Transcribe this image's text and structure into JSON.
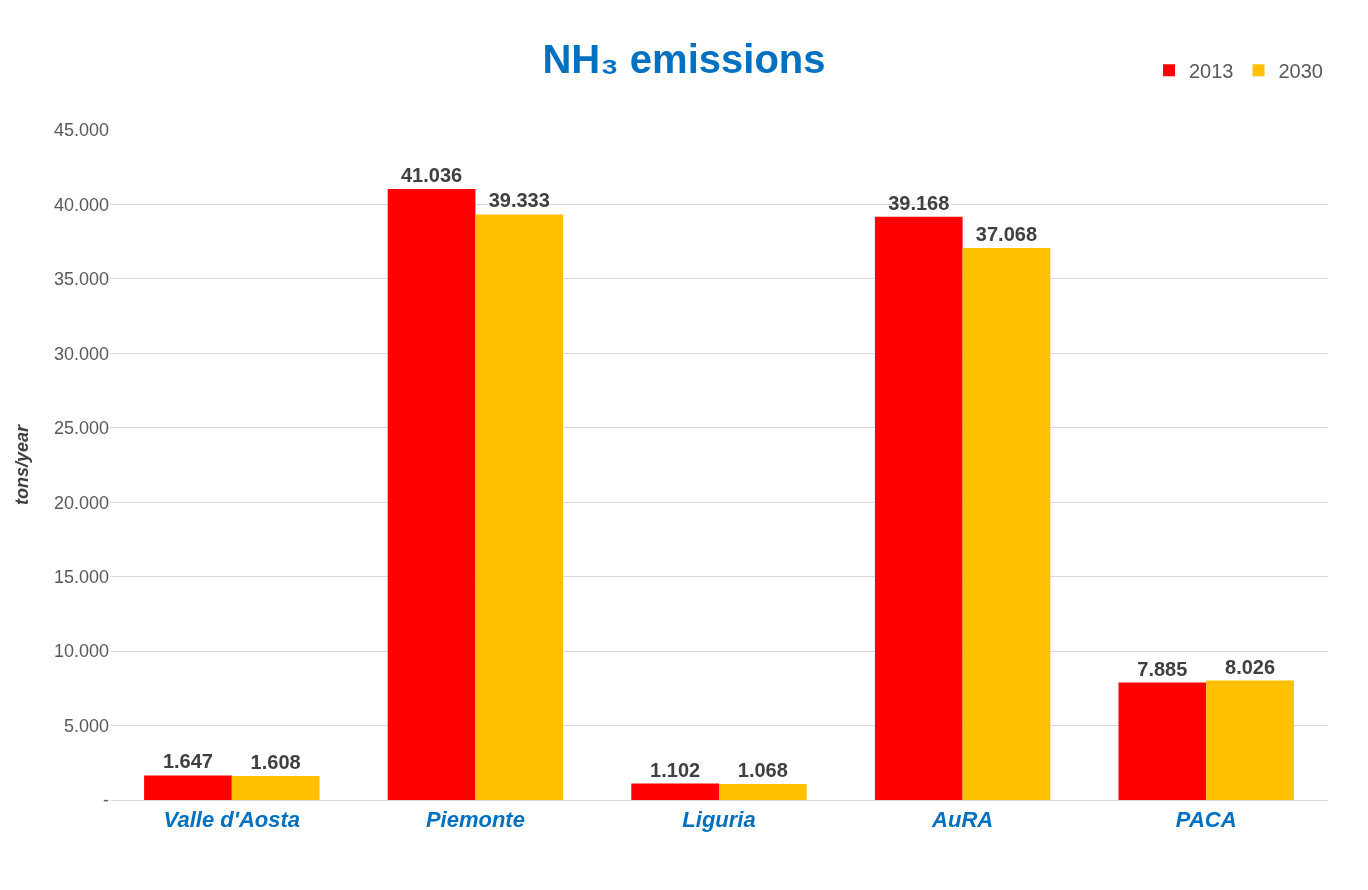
{
  "chart_data": {
    "type": "bar",
    "title": "NH₃ emissions",
    "ylabel": "tons/year",
    "categories": [
      "Valle d'Aosta",
      "Piemonte",
      "Liguria",
      "AuRA",
      "PACA"
    ],
    "series": [
      {
        "name": "2013",
        "color": "#ff0000",
        "values": [
          1647,
          41036,
          1102,
          39168,
          7885
        ],
        "value_labels": [
          "1.647",
          "41.036",
          "1.102",
          "39.168",
          "7.885"
        ]
      },
      {
        "name": "2030",
        "color": "#ffc000",
        "values": [
          1608,
          39333,
          1068,
          37068,
          8026
        ],
        "value_labels": [
          "1.608",
          "39.333",
          "1.068",
          "37.068",
          "8.026"
        ]
      }
    ],
    "ylim": [
      0,
      45000
    ],
    "yticks": [
      {
        "value": 0,
        "label": "-"
      },
      {
        "value": 5000,
        "label": "5.000"
      },
      {
        "value": 10000,
        "label": "10.000"
      },
      {
        "value": 15000,
        "label": "15.000"
      },
      {
        "value": 20000,
        "label": "20.000"
      },
      {
        "value": 25000,
        "label": "25.000"
      },
      {
        "value": 30000,
        "label": "30.000"
      },
      {
        "value": 35000,
        "label": "35.000"
      },
      {
        "value": 40000,
        "label": "40.000"
      },
      {
        "value": 45000,
        "label": "45.000"
      }
    ],
    "grid": "y",
    "legend": "top right"
  }
}
